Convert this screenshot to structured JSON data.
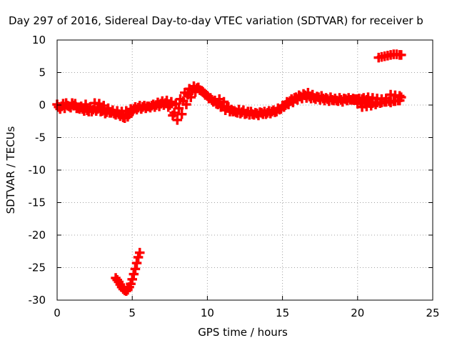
{
  "chart_data": {
    "type": "scatter",
    "title": "Day 297 of 2016, Sidereal Day-to-day VTEC variation (SDTVAR) for receiver b",
    "xlabel": "GPS time / hours",
    "ylabel": "SDTVAR / TECUs",
    "xlim": [
      0,
      25
    ],
    "ylim": [
      -30,
      10
    ],
    "x_ticks": [
      "0",
      "5",
      "10",
      "15",
      "20",
      "25"
    ],
    "y_ticks": [
      "10",
      "5",
      "0",
      "-5",
      "-10",
      "-15",
      "-20",
      "-25",
      "-30"
    ],
    "grid": true,
    "series_color": "#ff0000",
    "marker": "plus",
    "series": [
      {
        "points": [
          [
            0.0,
            0.1
          ],
          [
            0.3,
            -0.2
          ],
          [
            0.6,
            0.3
          ],
          [
            0.9,
            -0.4
          ],
          [
            1.2,
            0.2
          ],
          [
            1.5,
            -0.6
          ],
          [
            1.8,
            -0.9
          ],
          [
            2.1,
            -1.0
          ],
          [
            2.4,
            -0.7
          ],
          [
            2.7,
            -0.6
          ],
          [
            3.0,
            -0.9
          ],
          [
            3.3,
            -1.1
          ],
          [
            3.6,
            -1.2
          ],
          [
            3.9,
            -1.5
          ],
          [
            4.2,
            -1.7
          ],
          [
            4.5,
            -2.0
          ],
          [
            4.8,
            -1.4
          ],
          [
            5.1,
            -0.6
          ],
          [
            5.4,
            -0.4
          ],
          [
            5.7,
            -0.3
          ],
          [
            6.0,
            -0.2
          ],
          [
            6.3,
            -0.1
          ],
          [
            6.6,
            0.0
          ],
          [
            6.9,
            0.2
          ],
          [
            7.2,
            0.3
          ],
          [
            7.5,
            0.0
          ],
          [
            7.8,
            -1.2
          ],
          [
            8.1,
            -0.5
          ],
          [
            8.4,
            0.6
          ],
          [
            8.7,
            1.6
          ],
          [
            9.0,
            2.3
          ],
          [
            9.3,
            2.6
          ],
          [
            9.6,
            2.2
          ],
          [
            9.9,
            1.6
          ],
          [
            10.2,
            1.1
          ],
          [
            10.5,
            0.7
          ],
          [
            10.8,
            0.9
          ],
          [
            11.1,
            0.5
          ],
          [
            11.4,
            -0.3
          ],
          [
            11.7,
            -1.0
          ],
          [
            12.0,
            -1.2
          ],
          [
            12.3,
            -1.1
          ],
          [
            12.6,
            -1.3
          ],
          [
            12.9,
            -1.0
          ],
          [
            13.2,
            -1.2
          ],
          [
            13.5,
            -1.1
          ],
          [
            13.8,
            -1.0
          ],
          [
            14.1,
            -0.9
          ],
          [
            14.4,
            -0.8
          ],
          [
            14.7,
            -0.5
          ],
          [
            15.0,
            -0.1
          ],
          [
            15.3,
            0.5
          ],
          [
            15.6,
            0.9
          ],
          [
            15.9,
            1.2
          ],
          [
            16.2,
            1.3
          ],
          [
            16.5,
            1.5
          ],
          [
            16.8,
            1.3
          ],
          [
            17.1,
            1.1
          ],
          [
            17.4,
            1.2
          ],
          [
            17.7,
            1.0
          ],
          [
            18.0,
            0.9
          ],
          [
            18.3,
            0.8
          ],
          [
            18.6,
            0.7
          ],
          [
            18.9,
            0.8
          ],
          [
            19.2,
            0.9
          ],
          [
            19.5,
            0.8
          ],
          [
            19.8,
            0.9
          ],
          [
            20.1,
            1.0
          ],
          [
            20.4,
            1.1
          ],
          [
            20.7,
            1.2
          ]
        ]
      },
      {
        "points": [
          [
            0.1,
            -0.3
          ],
          [
            0.4,
            0.2
          ],
          [
            0.7,
            -0.1
          ],
          [
            1.0,
            0.3
          ],
          [
            1.3,
            -0.5
          ],
          [
            1.6,
            -0.2
          ],
          [
            1.9,
            0.1
          ],
          [
            2.2,
            -0.3
          ],
          [
            2.5,
            0.3
          ],
          [
            2.8,
            0.2
          ],
          [
            3.1,
            -0.1
          ],
          [
            3.4,
            -0.5
          ],
          [
            3.7,
            -0.8
          ],
          [
            4.0,
            -0.9
          ],
          [
            4.3,
            -1.0
          ],
          [
            4.6,
            -0.9
          ],
          [
            4.9,
            -0.6
          ],
          [
            5.2,
            -0.3
          ],
          [
            5.5,
            -0.1
          ],
          [
            5.8,
            -0.1
          ],
          [
            6.1,
            -0.2
          ],
          [
            6.4,
            0.1
          ],
          [
            6.7,
            0.4
          ],
          [
            7.0,
            0.6
          ],
          [
            7.3,
            0.7
          ],
          [
            7.6,
            0.5
          ],
          [
            7.9,
            0.2
          ],
          [
            8.2,
            0.9
          ],
          [
            8.5,
            1.9
          ],
          [
            8.8,
            2.5
          ],
          [
            9.1,
            2.9
          ],
          [
            9.4,
            2.7
          ],
          [
            9.7,
            2.0
          ],
          [
            10.0,
            1.4
          ],
          [
            10.3,
            0.8
          ],
          [
            10.6,
            0.2
          ],
          [
            10.9,
            -0.3
          ],
          [
            11.2,
            -0.8
          ],
          [
            11.5,
            -1.0
          ],
          [
            11.8,
            -0.9
          ],
          [
            12.1,
            -0.7
          ],
          [
            12.4,
            -0.8
          ],
          [
            12.7,
            -1.0
          ],
          [
            13.0,
            -1.4
          ],
          [
            13.3,
            -1.3
          ],
          [
            13.6,
            -1.2
          ],
          [
            13.9,
            -1.4
          ],
          [
            14.2,
            -1.3
          ],
          [
            14.5,
            -1.1
          ],
          [
            14.8,
            -0.7
          ],
          [
            15.1,
            -0.3
          ],
          [
            15.4,
            0.1
          ],
          [
            15.7,
            0.4
          ],
          [
            16.0,
            0.8
          ],
          [
            16.3,
            1.0
          ],
          [
            16.6,
            1.1
          ],
          [
            16.9,
            1.0
          ],
          [
            17.2,
            0.9
          ],
          [
            17.5,
            0.8
          ],
          [
            17.8,
            0.7
          ],
          [
            18.1,
            0.6
          ],
          [
            18.4,
            0.7
          ],
          [
            18.7,
            0.6
          ],
          [
            19.0,
            0.5
          ],
          [
            19.3,
            0.7
          ],
          [
            19.6,
            0.8
          ],
          [
            19.9,
            0.9
          ],
          [
            20.2,
            0.5
          ],
          [
            20.5,
            0.2
          ],
          [
            20.8,
            0.3
          ]
        ]
      },
      {
        "points": [
          [
            0.2,
            -0.6
          ],
          [
            0.5,
            -0.5
          ],
          [
            0.8,
            -0.2
          ],
          [
            1.1,
            -0.1
          ],
          [
            1.4,
            -0.5
          ],
          [
            1.7,
            -0.6
          ],
          [
            2.0,
            -0.8
          ],
          [
            2.3,
            -1.0
          ],
          [
            2.6,
            -0.9
          ],
          [
            2.9,
            -1.0
          ],
          [
            3.2,
            -1.3
          ],
          [
            3.5,
            -1.2
          ],
          [
            3.8,
            -1.3
          ],
          [
            4.1,
            -1.4
          ],
          [
            4.4,
            -1.9
          ],
          [
            4.7,
            -1.8
          ],
          [
            5.0,
            -1.0
          ],
          [
            5.3,
            -0.7
          ],
          [
            5.6,
            -0.6
          ],
          [
            5.9,
            -0.5
          ],
          [
            6.2,
            -0.4
          ],
          [
            6.5,
            -0.3
          ],
          [
            6.8,
            -0.2
          ],
          [
            7.1,
            0.0
          ],
          [
            7.4,
            -0.3
          ],
          [
            7.7,
            -1.6
          ],
          [
            8.0,
            -2.3
          ],
          [
            8.3,
            -1.4
          ],
          [
            8.6,
            0.1
          ],
          [
            8.9,
            1.2
          ],
          [
            9.2,
            2.0
          ],
          [
            9.5,
            2.3
          ],
          [
            9.8,
            1.8
          ],
          [
            10.1,
            1.0
          ],
          [
            10.4,
            0.5
          ],
          [
            10.7,
            0.1
          ],
          [
            11.0,
            -0.2
          ],
          [
            11.3,
            -0.4
          ],
          [
            11.6,
            -0.7
          ],
          [
            11.9,
            -1.1
          ],
          [
            12.2,
            -1.3
          ],
          [
            12.5,
            -1.4
          ],
          [
            12.8,
            -1.5
          ],
          [
            13.1,
            -1.5
          ],
          [
            13.4,
            -1.6
          ],
          [
            13.7,
            -1.4
          ],
          [
            14.0,
            -1.2
          ],
          [
            14.3,
            -1.0
          ],
          [
            14.6,
            -1.0
          ],
          [
            14.9,
            -0.6
          ],
          [
            15.2,
            0.0
          ],
          [
            15.5,
            0.6
          ],
          [
            15.8,
            1.1
          ],
          [
            16.1,
            1.5
          ],
          [
            16.4,
            1.7
          ],
          [
            16.7,
            1.9
          ],
          [
            17.0,
            1.6
          ],
          [
            17.3,
            1.3
          ],
          [
            17.6,
            1.4
          ],
          [
            17.9,
            1.1
          ],
          [
            18.2,
            1.2
          ],
          [
            18.5,
            1.0
          ],
          [
            18.8,
            1.1
          ],
          [
            19.1,
            1.0
          ],
          [
            19.4,
            1.1
          ],
          [
            19.7,
            1.0
          ],
          [
            20.0,
            0.9
          ],
          [
            20.3,
            0.9
          ],
          [
            20.6,
            0.8
          ],
          [
            20.9,
            0.4
          ]
        ]
      },
      {
        "points": [
          [
            20.0,
            0.2
          ],
          [
            20.3,
            -0.3
          ],
          [
            20.6,
            -0.2
          ],
          [
            20.9,
            -0.1
          ],
          [
            21.2,
            0.1
          ],
          [
            21.5,
            0.3
          ],
          [
            21.8,
            0.5
          ],
          [
            22.1,
            0.6
          ],
          [
            22.4,
            0.6
          ],
          [
            22.7,
            0.7
          ],
          [
            21.0,
            1.1
          ],
          [
            21.3,
            1.0
          ],
          [
            21.6,
            0.9
          ],
          [
            21.9,
            1.0
          ],
          [
            22.2,
            1.6
          ],
          [
            22.5,
            1.5
          ],
          [
            22.8,
            1.4
          ],
          [
            22.9,
            1.2
          ],
          [
            21.0,
            0.3
          ],
          [
            21.3,
            0.4
          ],
          [
            21.6,
            0.4
          ],
          [
            21.9,
            0.5
          ],
          [
            22.2,
            0.4
          ],
          [
            22.5,
            0.6
          ],
          [
            22.8,
            0.7
          ]
        ]
      },
      {
        "points": [
          [
            21.4,
            7.3
          ],
          [
            21.6,
            7.4
          ],
          [
            21.8,
            7.5
          ],
          [
            22.0,
            7.6
          ],
          [
            22.2,
            7.7
          ],
          [
            22.4,
            7.8
          ],
          [
            22.6,
            7.8
          ],
          [
            22.8,
            7.7
          ],
          [
            22.9,
            7.7
          ]
        ]
      },
      {
        "points": [
          [
            3.9,
            -26.6
          ],
          [
            4.0,
            -26.9
          ],
          [
            4.1,
            -27.2
          ],
          [
            4.2,
            -27.6
          ],
          [
            4.3,
            -28.0
          ],
          [
            4.4,
            -28.3
          ],
          [
            4.5,
            -28.5
          ],
          [
            4.6,
            -28.6
          ],
          [
            4.7,
            -28.4
          ],
          [
            4.8,
            -28.0
          ],
          [
            4.9,
            -27.5
          ],
          [
            5.0,
            -26.8
          ],
          [
            5.1,
            -26.0
          ],
          [
            5.2,
            -25.2
          ],
          [
            5.3,
            -24.3
          ],
          [
            5.4,
            -23.4
          ],
          [
            5.5,
            -22.7
          ]
        ]
      }
    ]
  }
}
